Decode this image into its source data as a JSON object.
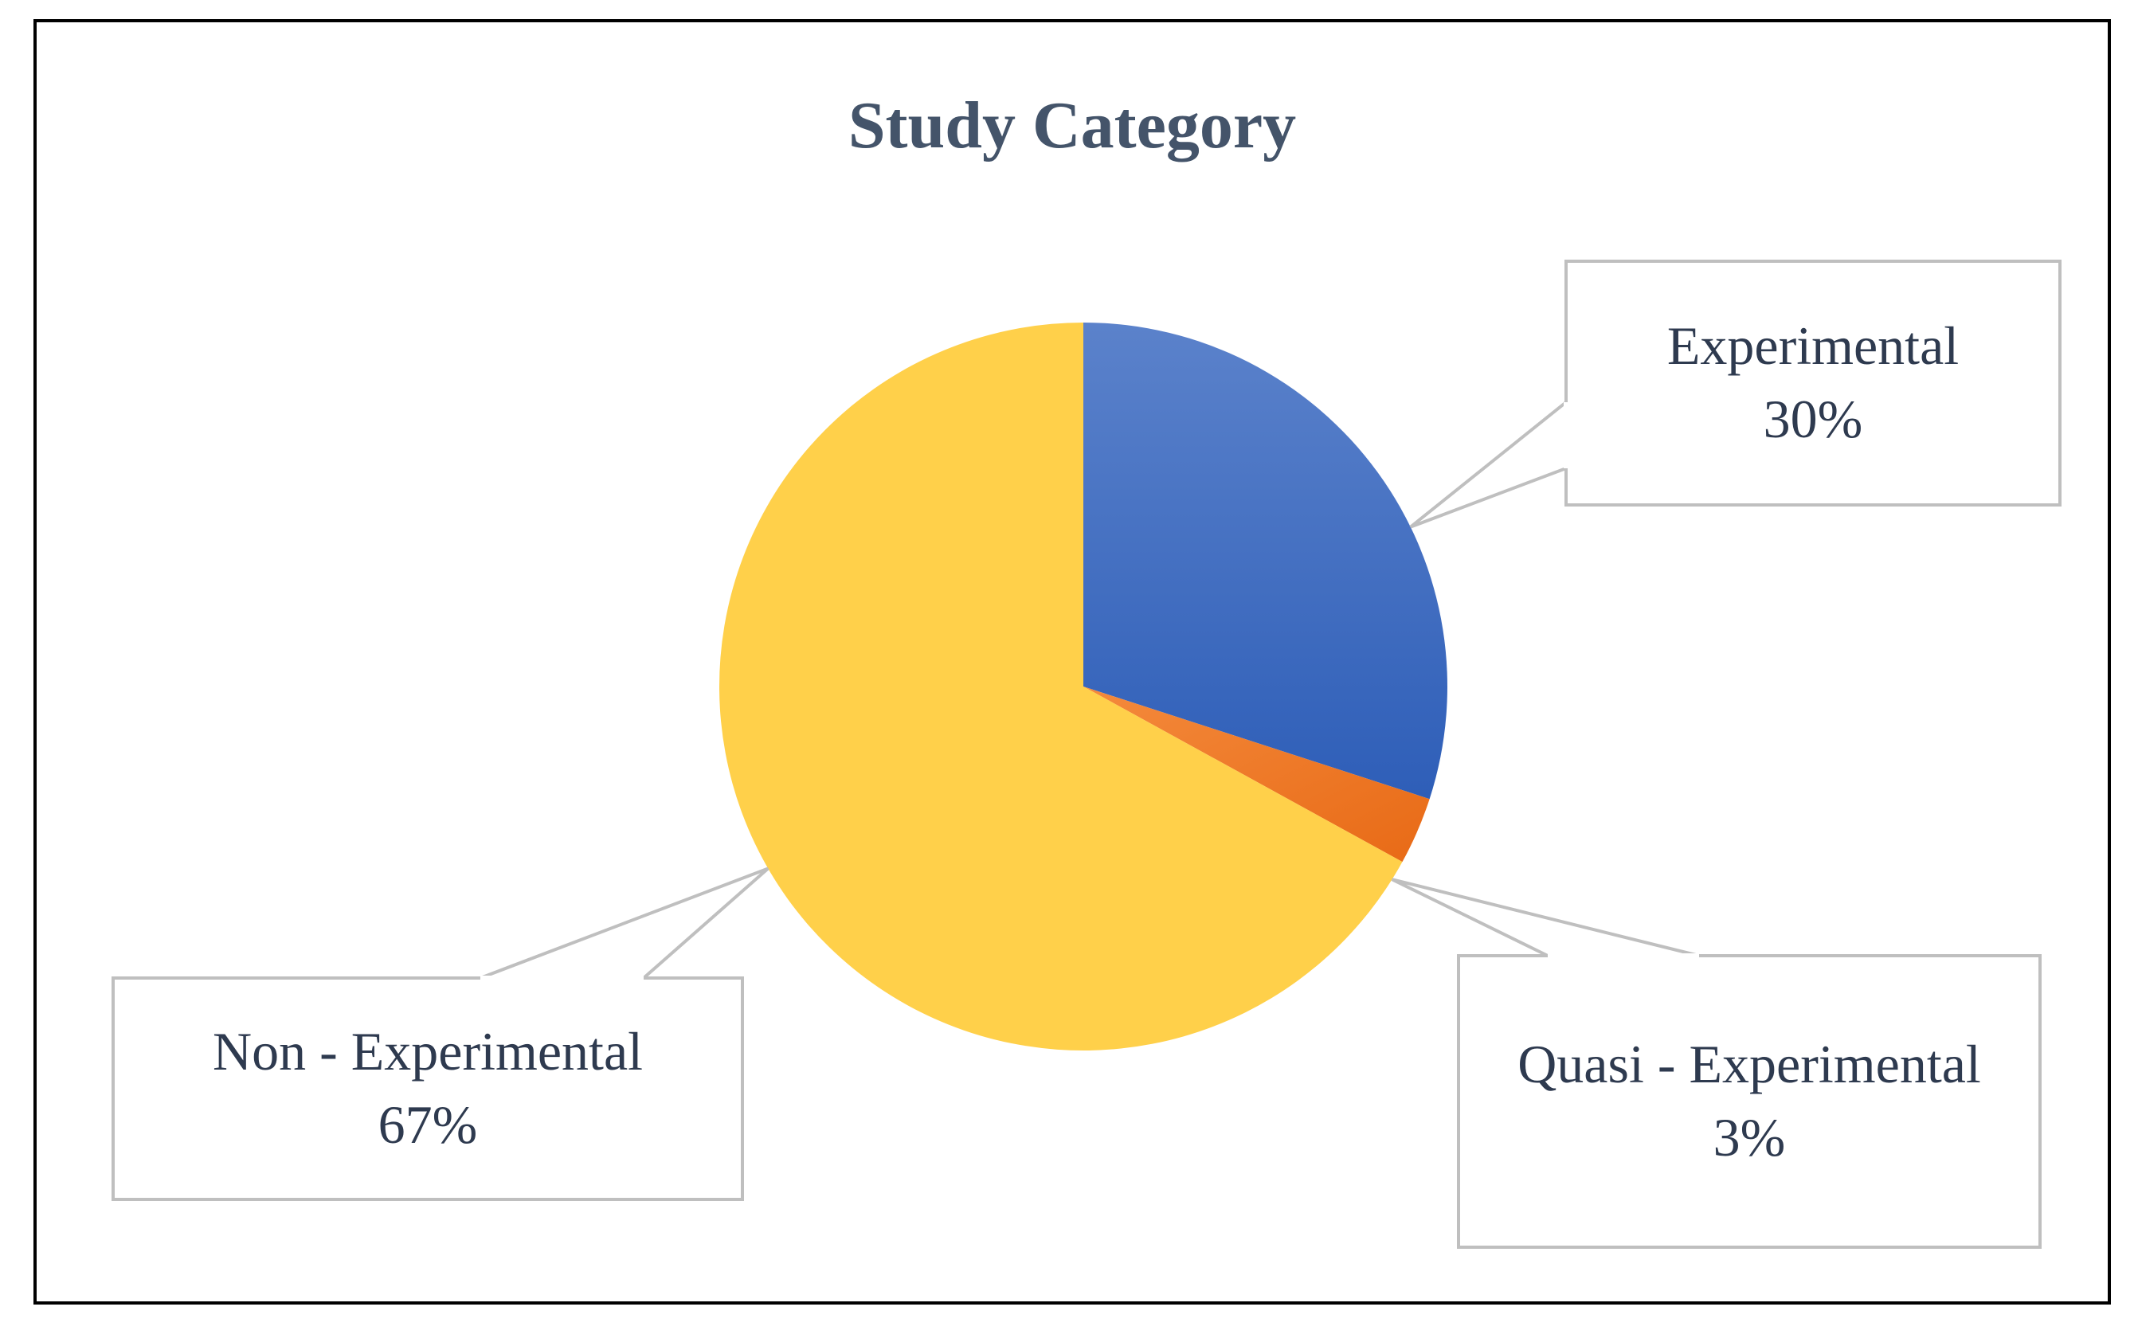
{
  "chart_data": {
    "type": "pie",
    "title": "Study Category",
    "categories": [
      "Experimental",
      "Quasi - Experimental",
      "Non - Experimental"
    ],
    "values": [
      30,
      3,
      67
    ],
    "value_labels": [
      "30%",
      "3%",
      "67%"
    ],
    "colors": [
      "#4472C4",
      "#ED7D31",
      "#FFD04A"
    ],
    "start_angle_deg": 0,
    "direction": "clockwise",
    "legend": "none",
    "label_style": "callout"
  },
  "colors": {
    "title": "#44546A",
    "label_text": "#2E3A4F",
    "callout_border": "#BFBFBF",
    "frame_border": "#000000"
  }
}
